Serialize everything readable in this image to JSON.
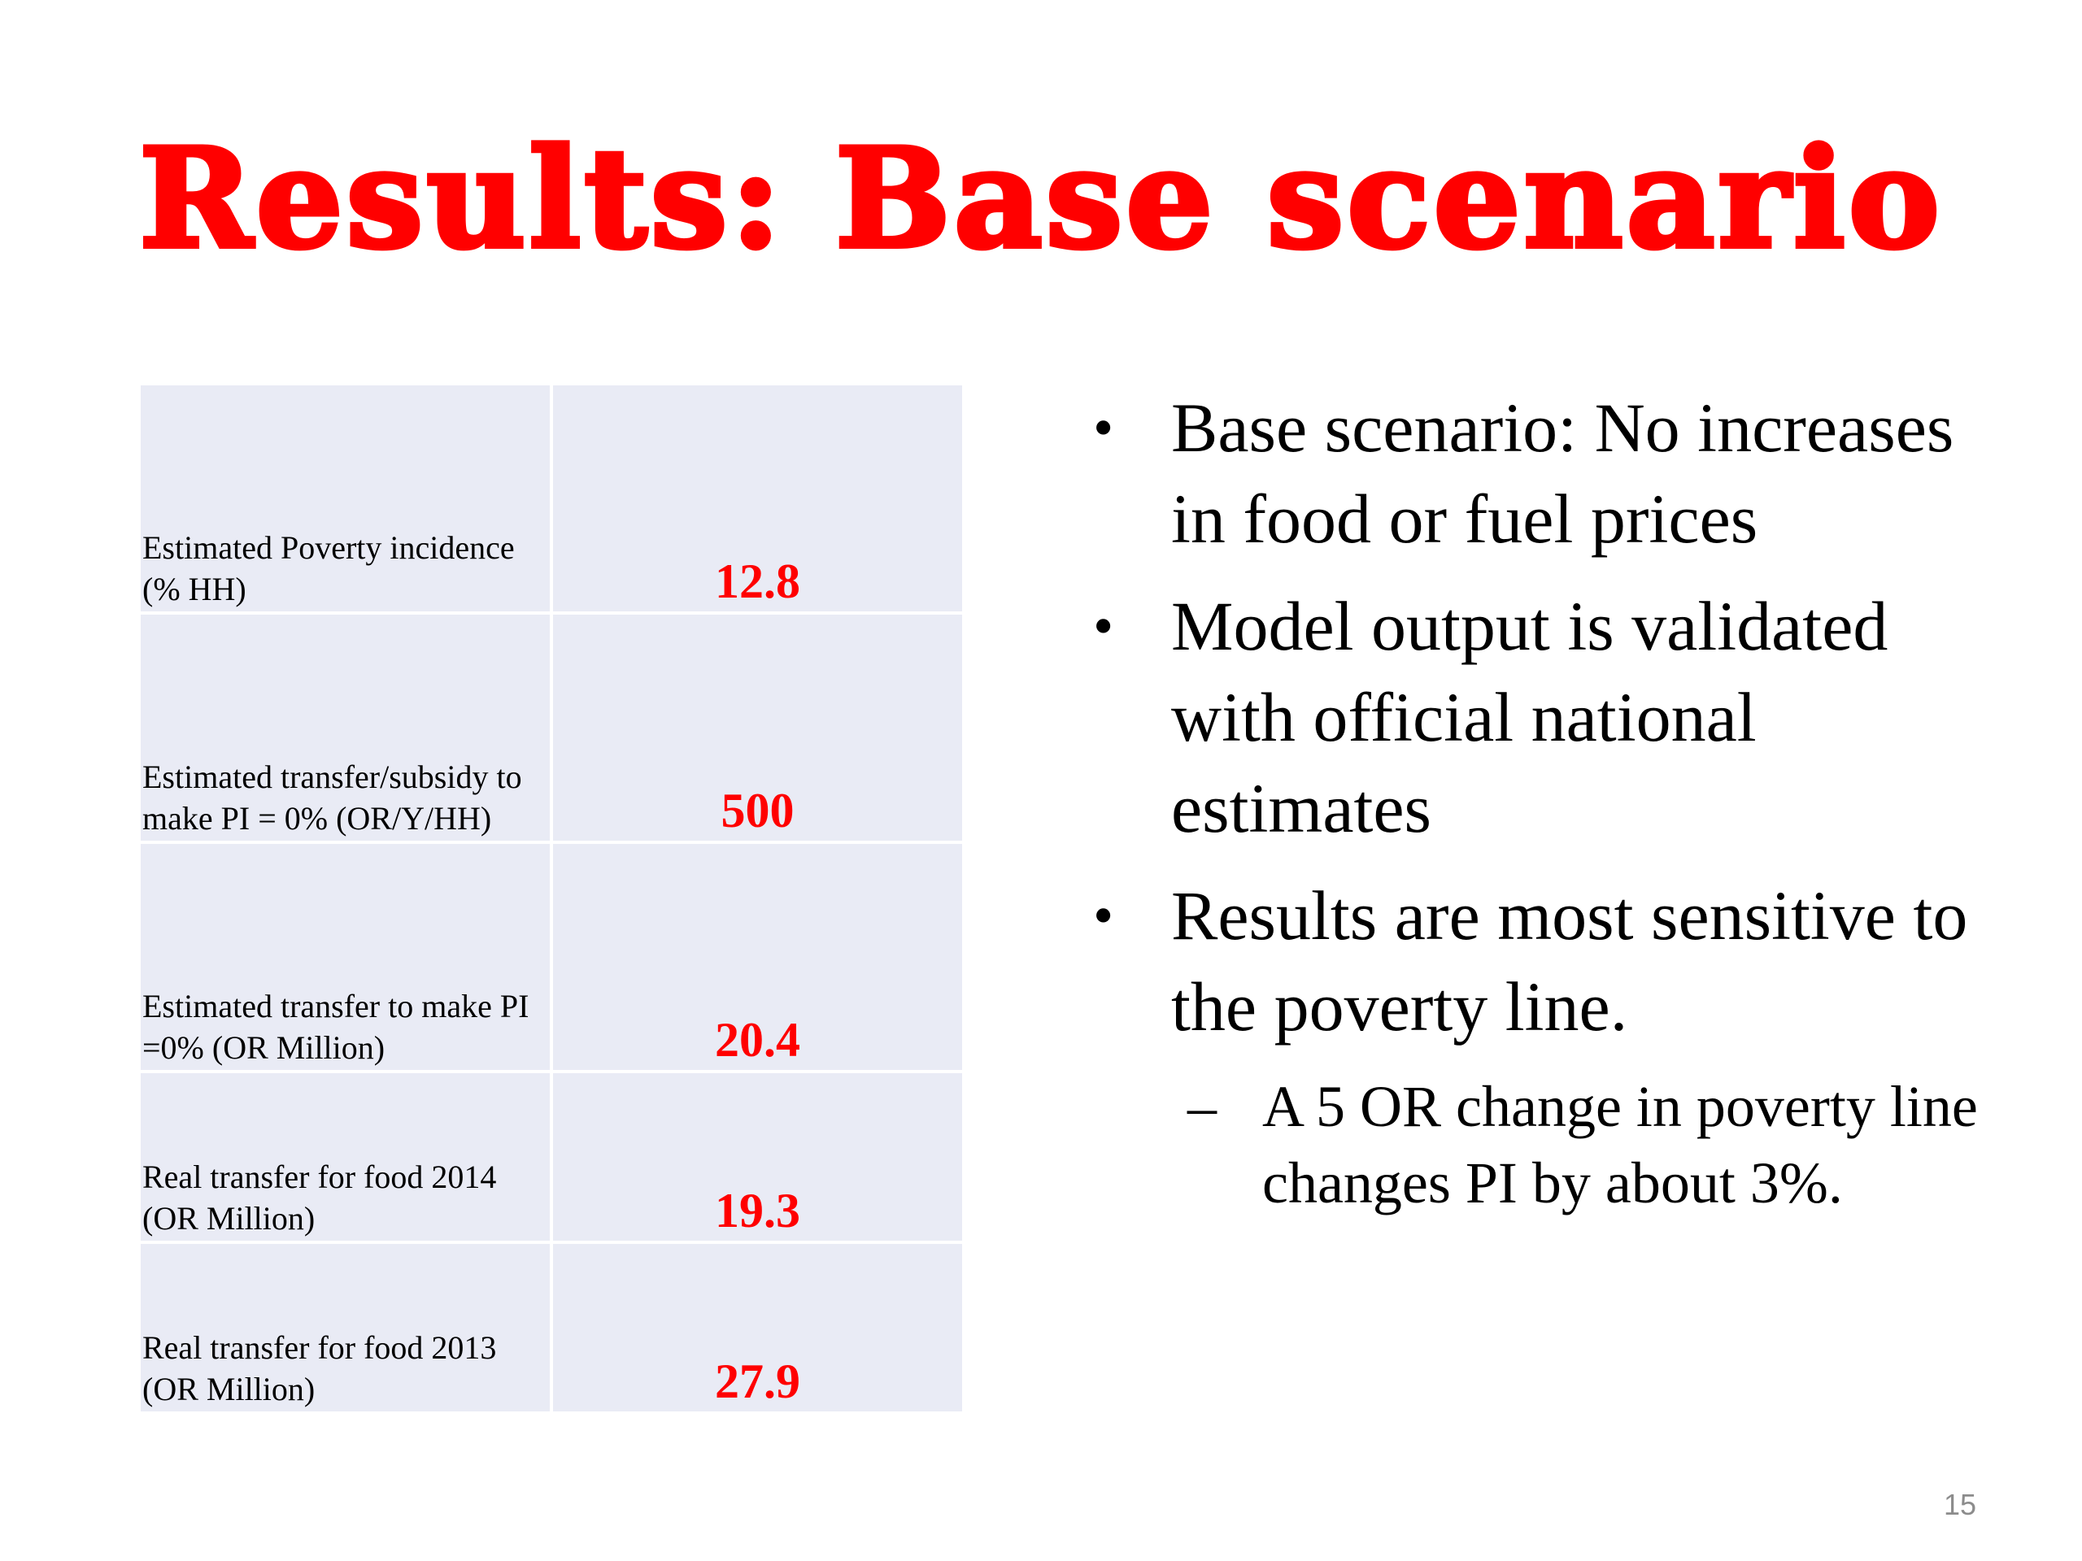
{
  "slide": {
    "title": "Results: Base scenario",
    "page_number": "15"
  },
  "table": {
    "rows": [
      {
        "label": "Estimated Poverty incidence (% HH)",
        "value": "12.8"
      },
      {
        "label": "Estimated transfer/subsidy to make PI = 0% (OR/Y/HH)",
        "value": "500"
      },
      {
        "label": "Estimated transfer to make PI =0% (OR Million)",
        "value": "20.4"
      },
      {
        "label": "Real transfer for food 2014 (OR Million)",
        "value": "19.3"
      },
      {
        "label": "Real transfer for food 2013 (OR Million)",
        "value": "27.9"
      }
    ]
  },
  "bullets": {
    "marker": "•",
    "sub_marker": "–",
    "items": [
      "Base scenario: No increases in food or fuel prices",
      "Model output is validated with official national estimates",
      "Results are most sensitive to the poverty line."
    ],
    "sub_items": [
      "A 5 OR change in poverty line changes PI by about 3%."
    ]
  }
}
